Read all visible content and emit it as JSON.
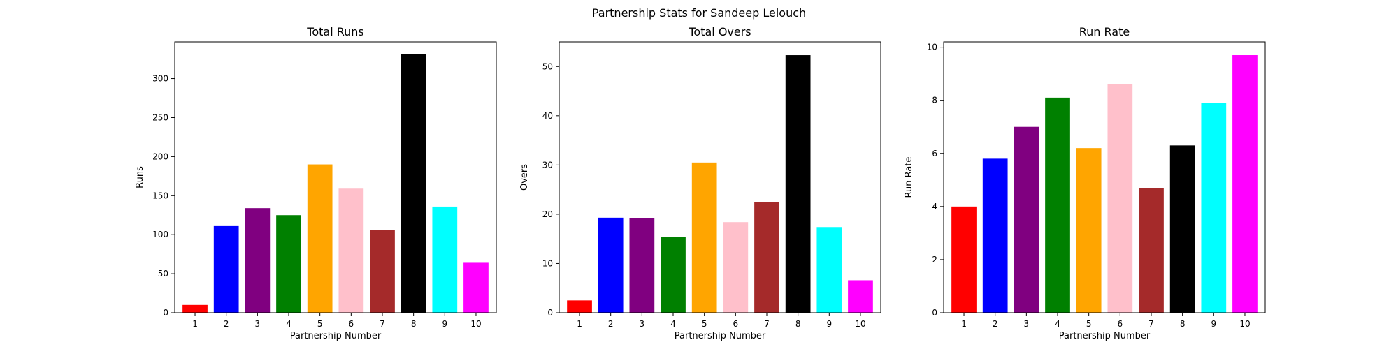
{
  "figure": {
    "title": "Partnership Stats for Sandeep Lelouch"
  },
  "colors": [
    "#ff0000",
    "#0000ff",
    "#800080",
    "#008000",
    "#ffa500",
    "#ffc0cb",
    "#a52a2a",
    "#000000",
    "#00ffff",
    "#ff00ff"
  ],
  "chart_data": [
    {
      "type": "bar",
      "title": "Total Runs",
      "xlabel": "Partnership Number",
      "ylabel": "Runs",
      "categories": [
        "1",
        "2",
        "3",
        "4",
        "5",
        "6",
        "7",
        "8",
        "9",
        "10"
      ],
      "values": [
        10,
        111,
        134,
        125,
        190,
        159,
        106,
        331,
        136,
        64
      ],
      "ylim": [
        0,
        347
      ],
      "yticks": [
        0,
        50,
        100,
        150,
        200,
        250,
        300
      ]
    },
    {
      "type": "bar",
      "title": "Total Overs",
      "xlabel": "Partnership Number",
      "ylabel": "Overs",
      "categories": [
        "1",
        "2",
        "3",
        "4",
        "5",
        "6",
        "7",
        "8",
        "9",
        "10"
      ],
      "values": [
        2.5,
        19.3,
        19.2,
        15.4,
        30.5,
        18.4,
        22.4,
        52.3,
        17.4,
        6.6
      ],
      "ylim": [
        0,
        55
      ],
      "yticks": [
        0,
        10,
        20,
        30,
        40,
        50
      ]
    },
    {
      "type": "bar",
      "title": "Run Rate",
      "xlabel": "Partnership Number",
      "ylabel": "Run Rate",
      "categories": [
        "1",
        "2",
        "3",
        "4",
        "5",
        "6",
        "7",
        "8",
        "9",
        "10"
      ],
      "values": [
        4.0,
        5.8,
        7.0,
        8.1,
        6.2,
        8.6,
        4.7,
        6.3,
        7.9,
        9.7
      ],
      "ylim": [
        0,
        10.2
      ],
      "yticks": [
        0,
        2,
        4,
        6,
        8,
        10
      ]
    }
  ]
}
